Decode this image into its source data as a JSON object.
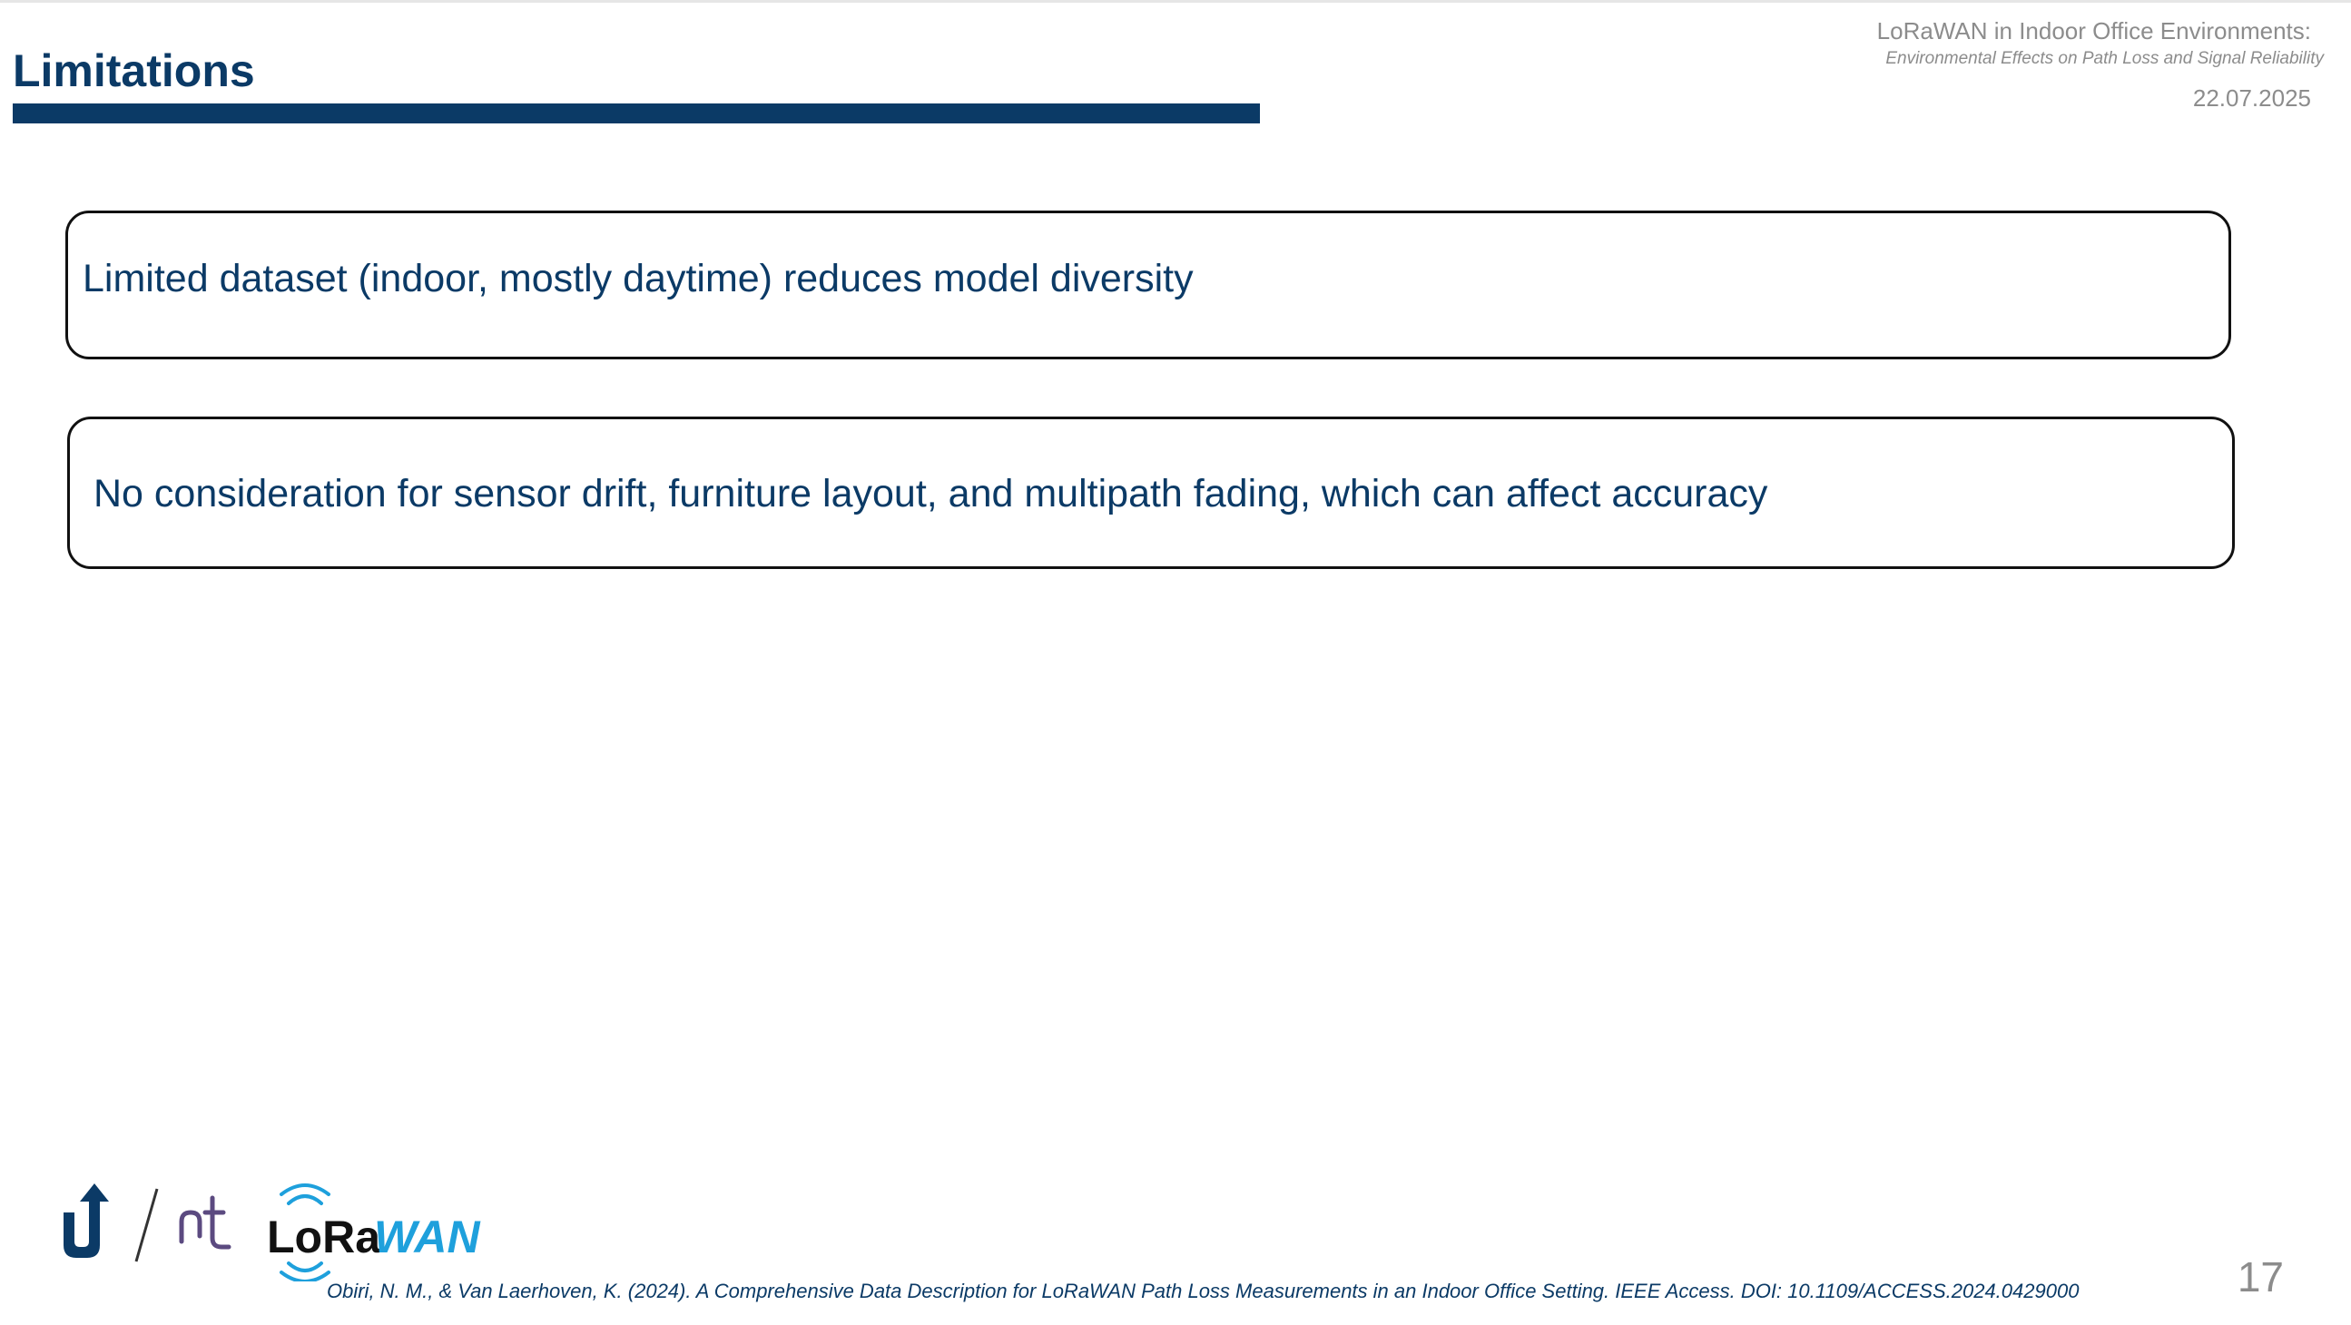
{
  "slide": {
    "title": "Limitations",
    "header": {
      "title": "LoRaWAN in Indoor Office Environments:",
      "subtitle": "Environmental Effects on Path Loss and Signal Reliability",
      "date": "22.07.2025"
    },
    "boxes": [
      {
        "text": "Limited dataset (indoor, mostly daytime) reduces model diversity"
      },
      {
        "text": "No consideration for sensor drift, furniture layout, and multipath fading, which can affect accuracy"
      }
    ],
    "footer": {
      "logos": {
        "lorawan_text_dark": "LoRa",
        "lorawan_text_light": "WAN"
      },
      "citation": "Obiri, N. M., & Van Laerhoven, K. (2024). A Comprehensive Data Description for LoRaWAN Path Loss Measurements in an Indoor Office Setting. IEEE Access. DOI: 10.1109/ACCESS.2024.0429000",
      "page_number": "17"
    }
  },
  "colors": {
    "primary": "#0b3a66",
    "muted": "#8c8c8c",
    "border": "#111111",
    "nt_logo": "#5b4a80",
    "lorawan_blue": "#1ea0dc"
  }
}
